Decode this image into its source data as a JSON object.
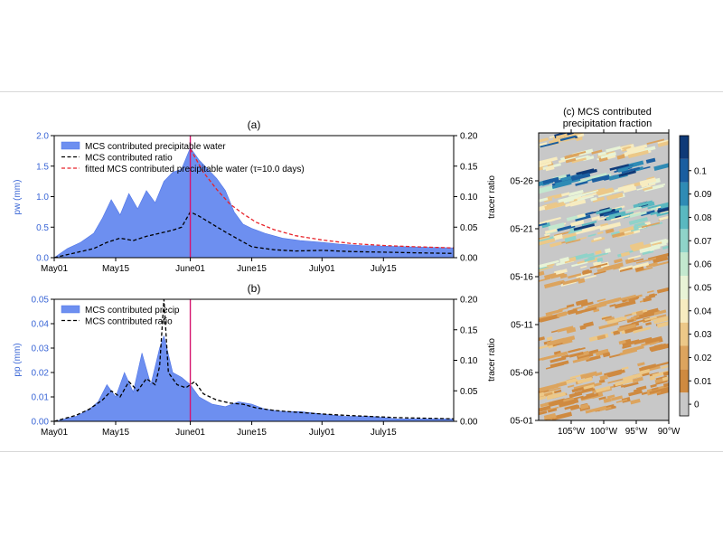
{
  "colors": {
    "pw_fill": "#6d8ff0",
    "pw_fill_edge": "#4f74e6",
    "ratio_line": "#000000",
    "fit_line": "#e8232a",
    "marker_line": "#d6146e",
    "left_axis_text": "#3a66d6",
    "land_gray": "#c8c8c8"
  },
  "chart_data": [
    {
      "panel_label": "(a)",
      "type": "area",
      "xlim": [
        "2020-05-01",
        "2020-07-31"
      ],
      "x_ticks": [
        "May01",
        "May15",
        "June01",
        "June15",
        "July01",
        "July15"
      ],
      "x_tick_dates": [
        "2020-05-01",
        "2020-05-15",
        "2020-06-01",
        "2020-06-15",
        "2020-07-01",
        "2020-07-15"
      ],
      "ylabel": "pw (mm)",
      "ylim": [
        0,
        2.0
      ],
      "y_ticks": [
        "0.0",
        "0.5",
        "1.0",
        "1.5",
        "2.0"
      ],
      "y2label": "tracer ratio",
      "y2lim": [
        0,
        0.2
      ],
      "y2_ticks": [
        "0.00",
        "0.05",
        "0.10",
        "0.15",
        "0.20"
      ],
      "vline_date": "2020-06-01",
      "legend_location": "upper-left",
      "series": [
        {
          "name": "MCS contributed precipitable water",
          "style": "filled-area",
          "axis": "left",
          "x": [
            "2020-05-01",
            "2020-05-04",
            "2020-05-07",
            "2020-05-10",
            "2020-05-12",
            "2020-05-14",
            "2020-05-16",
            "2020-05-18",
            "2020-05-20",
            "2020-05-22",
            "2020-05-24",
            "2020-05-26",
            "2020-05-28",
            "2020-05-30",
            "2020-06-01",
            "2020-06-03",
            "2020-06-05",
            "2020-06-07",
            "2020-06-09",
            "2020-06-11",
            "2020-06-13",
            "2020-06-15",
            "2020-06-18",
            "2020-06-22",
            "2020-06-26",
            "2020-07-01",
            "2020-07-05",
            "2020-07-10",
            "2020-07-15",
            "2020-07-20",
            "2020-07-25",
            "2020-07-31"
          ],
          "values": [
            0.0,
            0.15,
            0.25,
            0.4,
            0.65,
            0.95,
            0.7,
            1.05,
            0.8,
            1.1,
            0.9,
            1.25,
            1.4,
            1.45,
            1.8,
            1.6,
            1.45,
            1.3,
            1.1,
            0.75,
            0.55,
            0.48,
            0.4,
            0.32,
            0.28,
            0.25,
            0.22,
            0.2,
            0.19,
            0.18,
            0.17,
            0.16
          ]
        },
        {
          "name": "MCS contributed ratio",
          "style": "dashed",
          "axis": "right",
          "x": [
            "2020-05-01",
            "2020-05-04",
            "2020-05-07",
            "2020-05-10",
            "2020-05-13",
            "2020-05-16",
            "2020-05-19",
            "2020-05-22",
            "2020-05-25",
            "2020-05-28",
            "2020-05-30",
            "2020-06-01",
            "2020-06-03",
            "2020-06-06",
            "2020-06-09",
            "2020-06-12",
            "2020-06-15",
            "2020-06-20",
            "2020-06-25",
            "2020-07-01",
            "2020-07-08",
            "2020-07-15",
            "2020-07-22",
            "2020-07-31"
          ],
          "values": [
            0.0,
            0.005,
            0.01,
            0.015,
            0.025,
            0.032,
            0.028,
            0.035,
            0.04,
            0.045,
            0.05,
            0.075,
            0.068,
            0.055,
            0.042,
            0.03,
            0.018,
            0.013,
            0.011,
            0.012,
            0.01,
            0.009,
            0.008,
            0.007
          ]
        },
        {
          "name": "fitted MCS contributed precipitable water (τ=10.0 days)",
          "style": "dashed",
          "axis": "left",
          "x": [
            "2020-06-01",
            "2020-06-04",
            "2020-06-07",
            "2020-06-10",
            "2020-06-13",
            "2020-06-16",
            "2020-06-20",
            "2020-06-25",
            "2020-07-01",
            "2020-07-08",
            "2020-07-15",
            "2020-07-22",
            "2020-07-31"
          ],
          "values": [
            1.78,
            1.4,
            1.12,
            0.88,
            0.72,
            0.58,
            0.46,
            0.36,
            0.29,
            0.23,
            0.2,
            0.18,
            0.16
          ]
        }
      ]
    },
    {
      "panel_label": "(b)",
      "type": "area",
      "xlim": [
        "2020-05-01",
        "2020-07-31"
      ],
      "x_ticks": [
        "May01",
        "May15",
        "June01",
        "June15",
        "July01",
        "July15"
      ],
      "x_tick_dates": [
        "2020-05-01",
        "2020-05-15",
        "2020-06-01",
        "2020-06-15",
        "2020-07-01",
        "2020-07-15"
      ],
      "ylabel": "pp (mm)",
      "ylim": [
        0,
        0.05
      ],
      "y_ticks": [
        "0.00",
        "0.01",
        "0.02",
        "0.03",
        "0.04",
        "0.05"
      ],
      "y2label": "tracer ratio",
      "y2lim": [
        0,
        0.2
      ],
      "y2_ticks": [
        "0.00",
        "0.05",
        "0.10",
        "0.15",
        "0.20"
      ],
      "vline_date": "2020-06-01",
      "legend_location": "upper-left",
      "series": [
        {
          "name": "MCS contributed precip",
          "style": "filled-area",
          "axis": "left",
          "x": [
            "2020-05-01",
            "2020-05-06",
            "2020-05-09",
            "2020-05-11",
            "2020-05-13",
            "2020-05-15",
            "2020-05-17",
            "2020-05-19",
            "2020-05-21",
            "2020-05-23",
            "2020-05-25",
            "2020-05-26",
            "2020-05-28",
            "2020-05-30",
            "2020-06-01",
            "2020-06-03",
            "2020-06-06",
            "2020-06-09",
            "2020-06-12",
            "2020-06-15",
            "2020-06-18",
            "2020-06-22",
            "2020-06-26",
            "2020-07-01",
            "2020-07-06",
            "2020-07-12",
            "2020-07-18",
            "2020-07-25",
            "2020-07-31"
          ],
          "values": [
            0.0,
            0.002,
            0.005,
            0.008,
            0.015,
            0.01,
            0.02,
            0.012,
            0.028,
            0.015,
            0.03,
            0.035,
            0.02,
            0.018,
            0.015,
            0.01,
            0.007,
            0.006,
            0.008,
            0.007,
            0.005,
            0.004,
            0.004,
            0.003,
            0.002,
            0.002,
            0.001,
            0.001,
            0.001
          ]
        },
        {
          "name": "MCS contributed ratio",
          "style": "dashed",
          "axis": "right",
          "x": [
            "2020-05-01",
            "2020-05-06",
            "2020-05-09",
            "2020-05-12",
            "2020-05-14",
            "2020-05-16",
            "2020-05-18",
            "2020-05-20",
            "2020-05-22",
            "2020-05-24",
            "2020-05-25",
            "2020-05-26",
            "2020-05-27",
            "2020-05-29",
            "2020-05-31",
            "2020-06-02",
            "2020-06-04",
            "2020-06-07",
            "2020-06-10",
            "2020-06-13",
            "2020-06-16",
            "2020-06-20",
            "2020-06-25",
            "2020-07-01",
            "2020-07-06",
            "2020-07-12",
            "2020-07-18",
            "2020-07-25",
            "2020-07-31"
          ],
          "values": [
            0.0,
            0.01,
            0.02,
            0.035,
            0.05,
            0.04,
            0.065,
            0.05,
            0.07,
            0.06,
            0.09,
            0.2,
            0.08,
            0.06,
            0.055,
            0.065,
            0.045,
            0.035,
            0.03,
            0.028,
            0.022,
            0.018,
            0.015,
            0.012,
            0.01,
            0.008,
            0.006,
            0.005,
            0.004
          ]
        }
      ]
    },
    {
      "panel_label": "(c)",
      "type": "heatmap",
      "title_line1": "(c) MCS contributed",
      "title_line2": "precipitation fraction",
      "x_ticks": [
        "105°W",
        "100°W",
        "95°W",
        "90°W"
      ],
      "x_tick_lons": [
        -105,
        -100,
        -95,
        -90
      ],
      "xlim_lon": [
        -110,
        -90
      ],
      "y_ticks": [
        "05-01",
        "05-06",
        "05-11",
        "05-16",
        "05-21",
        "05-26"
      ],
      "y_tick_days": [
        1,
        6,
        11,
        16,
        21,
        26
      ],
      "ylim_day": [
        1,
        31
      ],
      "colorbar_ticks": [
        "0",
        "0.01",
        "0.02",
        "0.03",
        "0.04",
        "0.05",
        "0.06",
        "0.07",
        "0.08",
        "0.09",
        "0.1"
      ],
      "colorbar_colors": [
        "#c8c8c8",
        "#cf8a40",
        "#dca45e",
        "#ecc888",
        "#f7ecc0",
        "#e8f3d6",
        "#c3e8cf",
        "#8fd3c9",
        "#5ab8c0",
        "#2f8bb5",
        "#1a5ea0",
        "#0f3a78"
      ]
    }
  ]
}
